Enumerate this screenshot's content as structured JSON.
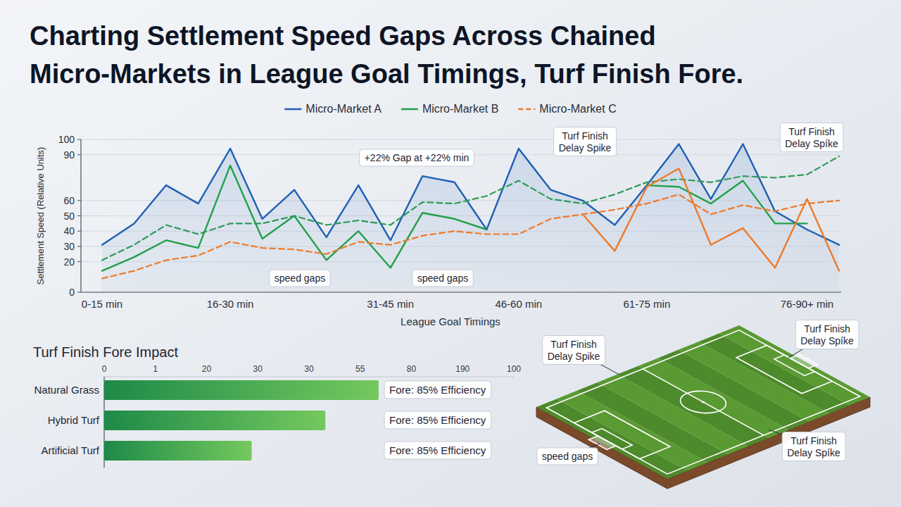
{
  "chart_data": [
    {
      "type": "line",
      "title": "Charting Settlement Speed Gaps Across Chained Micro-Markets in League Goal Timings, Turf Finish Fore.",
      "x_label": "League Goal Timings",
      "y_label": "Settlement Speed (Relative Units)",
      "categories": [
        "0-15 min",
        null,
        null,
        null,
        "16-30 min",
        null,
        null,
        null,
        null,
        "31-45 min",
        null,
        null,
        null,
        "46-60 min",
        null,
        null,
        null,
        "61-75 min",
        null,
        null,
        null,
        null,
        "76-90+ min",
        null
      ],
      "series": [
        {
          "name": "Micro-Market A",
          "color": "#1f5fb4",
          "line_style": "solid",
          "values": [
            31,
            45,
            70,
            58,
            94,
            48,
            67,
            36,
            70,
            34,
            76,
            72,
            41,
            94,
            67,
            60,
            44,
            70,
            97,
            61,
            97,
            53,
            41,
            31
          ]
        },
        {
          "name": "Micro-Market B",
          "color": "#22a04b",
          "line_style": "solid",
          "values": [
            14,
            23,
            34,
            29,
            83,
            35,
            50,
            21,
            40,
            16,
            52,
            48,
            41,
            null,
            null,
            null,
            null,
            70,
            69,
            58,
            73,
            45,
            45,
            null
          ]
        },
        {
          "name": "Micro-Market C",
          "color": "#ee7a2a",
          "line_style": "dashed",
          "values": [
            9,
            14,
            21,
            24,
            33,
            29,
            28,
            25,
            33,
            31,
            37,
            40,
            38,
            38,
            48,
            51,
            54,
            58,
            64,
            51,
            57,
            53,
            58,
            60
          ]
        },
        {
          "color": "#2f9a5a",
          "line_style": "dashed",
          "values": [
            21,
            31,
            44,
            38,
            45,
            45,
            50,
            44,
            47,
            44,
            59,
            58,
            63,
            73,
            61,
            58,
            64,
            72,
            74,
            72,
            76,
            75,
            77,
            89
          ]
        },
        {
          "color": "#ee7a2a",
          "line_style": "solid",
          "values": [
            null,
            null,
            null,
            null,
            null,
            null,
            null,
            null,
            null,
            null,
            null,
            null,
            null,
            null,
            null,
            51,
            27,
            69,
            81,
            31,
            42,
            16,
            61,
            14
          ]
        }
      ],
      "ylim": [
        0,
        100
      ],
      "yticks": [
        0,
        20,
        30,
        40,
        50,
        60,
        90,
        100
      ],
      "grid": true,
      "legend": "top",
      "annotations": [
        "+22% Gap at +22% min",
        "Turf Finish\nDelay Spike",
        "Turf Finish\nDelay Spíke",
        "speed gaps",
        "speed gaps"
      ]
    },
    {
      "type": "bar",
      "title": "Turf Finish Fore Impact",
      "orientation": "horizontal",
      "categories": [
        "Natural Grass",
        "Hybrid Turf",
        "Artificial Turf"
      ],
      "values": [
        67,
        54,
        36
      ],
      "color": "#1e8a48",
      "xlim": [
        0,
        100
      ],
      "scale_labels": [
        "0",
        "1",
        "20",
        "30",
        "30",
        "55",
        "80",
        "190",
        "100"
      ],
      "annotations": [
        "Fore: 85% Efficiency",
        "Fore: 85% Efficiency",
        "Fore: 85% Efficiency"
      ]
    }
  ],
  "illustration": {
    "labels": [
      "Turf Finish\nDelay Spike",
      "Turf Finish\nDelay Spíke",
      "speed gaps",
      "Turf Finish\nDelay Spíke"
    ]
  }
}
